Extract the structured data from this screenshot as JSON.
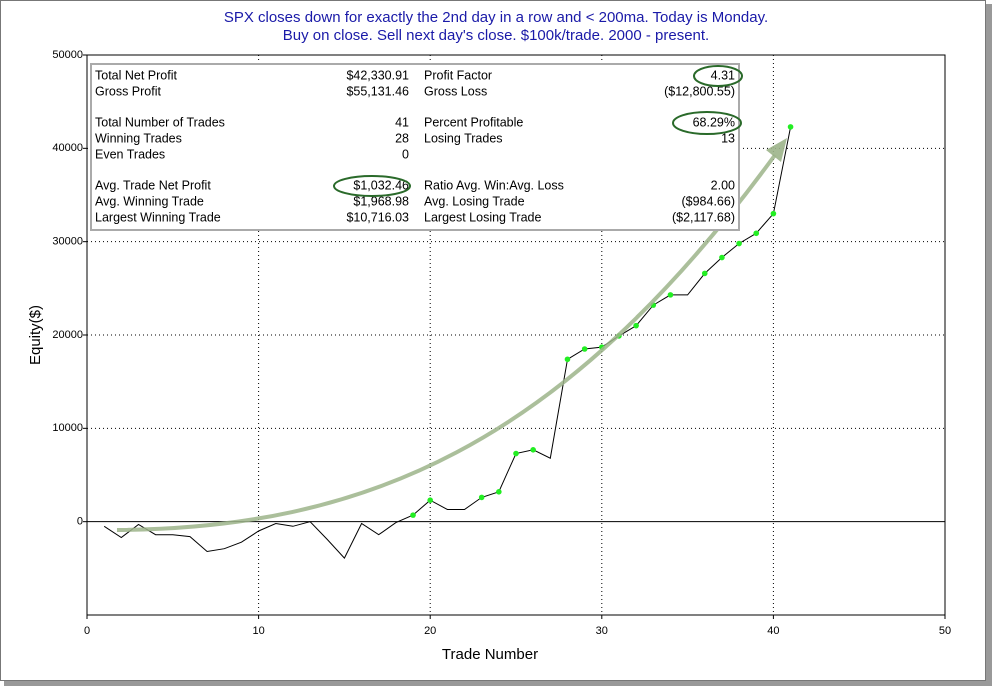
{
  "chart_data": {
    "type": "line",
    "title": [
      "SPX closes down for exactly the 2nd day in a row and < 200ma. Today is Monday.",
      "Buy on close. Sell next day's close. $100k/trade. 2000 - present."
    ],
    "x_label": "Trade Number",
    "y_label": "Equity($)",
    "x": [
      1,
      2,
      3,
      4,
      5,
      6,
      7,
      8,
      9,
      10,
      11,
      12,
      13,
      14,
      15,
      16,
      17,
      18,
      19,
      20,
      21,
      22,
      23,
      24,
      25,
      26,
      27,
      28,
      29,
      30,
      31,
      32,
      33,
      34,
      35,
      36,
      37,
      38,
      39,
      40,
      41
    ],
    "values": [
      -500,
      -1700,
      -300,
      -1400,
      -1400,
      -1600,
      -3200,
      -2900,
      -2200,
      -1000,
      -200,
      -500,
      0,
      -1900,
      -3900,
      -200,
      -1400,
      -100,
      700,
      2300,
      1300,
      1300,
      2600,
      3200,
      7300,
      7700,
      6800,
      17400,
      18500,
      18700,
      19900,
      21000,
      23200,
      24300,
      24300,
      26600,
      28300,
      29800,
      30900,
      33000,
      42300
    ],
    "color": "#000000",
    "marker_color": "#22ee22",
    "xlim": [
      0,
      50
    ],
    "xticks": [
      0,
      10,
      20,
      30,
      40,
      50
    ],
    "ylim": [
      -10000,
      50000
    ],
    "yticks": [
      0,
      10000,
      20000,
      30000,
      40000,
      50000
    ],
    "grid": true,
    "negative_color": "#e01010",
    "stats": [
      [
        [
          [
            "Total Net Profit",
            "$42,330.91"
          ],
          [
            "Profit Factor",
            "4.31"
          ]
        ],
        [
          [
            "Gross Profit",
            "$55,131.46"
          ],
          [
            "Gross Loss",
            "($12,800.55)"
          ]
        ]
      ],
      [
        [
          [
            "Total Number of Trades",
            "41"
          ],
          [
            "Percent Profitable",
            "68.29%"
          ]
        ],
        [
          [
            "Winning Trades",
            "28"
          ],
          [
            "Losing Trades",
            "13"
          ]
        ],
        [
          [
            "Even Trades",
            "0"
          ]
        ]
      ],
      [
        [
          [
            "Avg. Trade Net Profit",
            "$1,032.46"
          ],
          [
            "Ratio Avg. Win:Avg. Loss",
            "2.00"
          ]
        ],
        [
          [
            "Avg. Winning Trade",
            "$1,968.98"
          ],
          [
            "Avg. Losing Trade",
            "($984.66)"
          ]
        ],
        [
          [
            "Largest Winning Trade",
            "$10,716.03"
          ],
          [
            "Largest Losing Trade",
            "($2,117.68)"
          ]
        ]
      ]
    ]
  }
}
